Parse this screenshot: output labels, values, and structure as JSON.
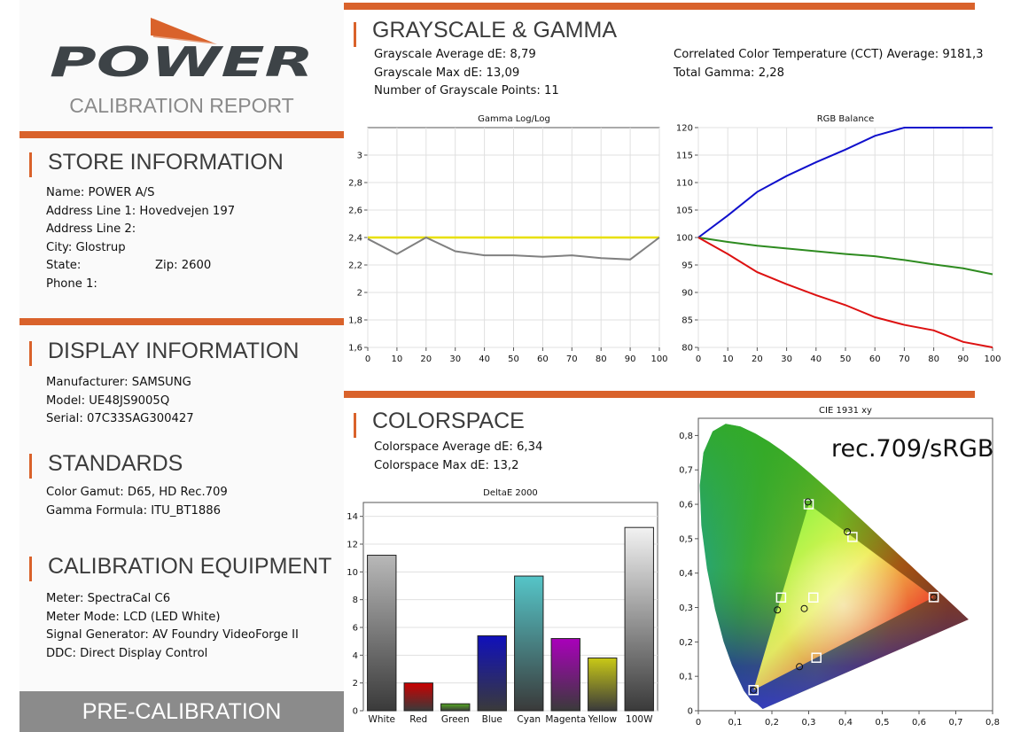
{
  "brand": {
    "logo_text": "POWER",
    "subtitle": "CALIBRATION REPORT",
    "colors": {
      "accent": "#d9622b",
      "logo": "#3d4347",
      "footer": "#8b8b8b"
    }
  },
  "store": {
    "title": "STORE INFORMATION",
    "lines": [
      "Name: POWER A/S",
      "Address Line 1: Hovedvejen 197",
      "Address Line 2:",
      "City: Glostrup"
    ],
    "state_label": "State:",
    "zip_label": "Zip: 2600",
    "phone": "Phone 1:"
  },
  "display": {
    "title": "DISPLAY INFORMATION",
    "lines": [
      "Manufacturer: SAMSUNG",
      "Model: UE48JS9005Q",
      "Serial: 07C33SAG300427"
    ]
  },
  "standards": {
    "title": "STANDARDS",
    "lines": [
      "Color Gamut: D65, HD Rec.709",
      "Gamma Formula: ITU_BT1886"
    ]
  },
  "equipment": {
    "title": "CALIBRATION EQUIPMENT",
    "lines": [
      "Meter: SpectraCal C6",
      "Meter Mode: LCD (LED White)",
      "Signal Generator: AV Foundry VideoForge II",
      "DDC: Direct Display Control"
    ]
  },
  "footer": {
    "label": "PRE-CALIBRATION"
  },
  "grayscale": {
    "title": "GRAYSCALE & GAMMA",
    "left_lines": [
      "Grayscale Average dE: 8,79",
      "Grayscale Max dE: 13,09",
      "Number of Grayscale Points: 11"
    ],
    "right_lines": [
      "Correlated Color Temperature (CCT) Average: 9181,3",
      "Total Gamma: 2,28"
    ]
  },
  "colorspace": {
    "title": "COLORSPACE",
    "lines": [
      "Colorspace Average dE: 6,34",
      "Colorspace Max dE: 13,2"
    ]
  },
  "chart_data": [
    {
      "type": "line",
      "title": "Gamma Log/Log",
      "x": [
        0,
        10,
        20,
        30,
        40,
        50,
        60,
        70,
        80,
        90,
        100
      ],
      "xlim": [
        0,
        100
      ],
      "ylim": [
        1.6,
        3.2
      ],
      "x_ticks": [
        "0",
        "10",
        "20",
        "30",
        "40",
        "50",
        "60",
        "70",
        "80",
        "90",
        "100"
      ],
      "y_ticks": [
        {
          "v": 1.6,
          "label": "1,6"
        },
        {
          "v": 1.8,
          "label": "1,8"
        },
        {
          "v": 2.0,
          "label": "2"
        },
        {
          "v": 2.2,
          "label": "2,2"
        },
        {
          "v": 2.4,
          "label": "2,4"
        },
        {
          "v": 2.6,
          "label": "2,6"
        },
        {
          "v": 2.8,
          "label": "2,8"
        },
        {
          "v": 3.0,
          "label": "3"
        }
      ],
      "grid": true,
      "series": [
        {
          "color": "#e8e000",
          "values": [
            2.4,
            2.4,
            2.4,
            2.4,
            2.4,
            2.4,
            2.4,
            2.4,
            2.4,
            2.4,
            2.4
          ]
        },
        {
          "color": "#808080",
          "values": [
            2.39,
            2.28,
            2.4,
            2.3,
            2.27,
            2.27,
            2.26,
            2.27,
            2.25,
            2.24,
            2.4
          ]
        }
      ]
    },
    {
      "type": "line",
      "title": "RGB Balance",
      "x": [
        0,
        10,
        20,
        30,
        40,
        50,
        60,
        70,
        80,
        90,
        100
      ],
      "xlim": [
        0,
        100
      ],
      "ylim": [
        80,
        120
      ],
      "x_ticks": [
        "0",
        "10",
        "20",
        "30",
        "40",
        "50",
        "60",
        "70",
        "80",
        "90",
        "100"
      ],
      "y_ticks": [
        {
          "v": 80,
          "label": "80"
        },
        {
          "v": 85,
          "label": "85"
        },
        {
          "v": 90,
          "label": "90"
        },
        {
          "v": 95,
          "label": "95"
        },
        {
          "v": 100,
          "label": "100"
        },
        {
          "v": 105,
          "label": "105"
        },
        {
          "v": 110,
          "label": "110"
        },
        {
          "v": 115,
          "label": "115"
        },
        {
          "v": 120,
          "label": "120"
        }
      ],
      "grid": true,
      "series": [
        {
          "color": "#1010cc",
          "values": [
            100,
            104,
            108.3,
            111.2,
            113.7,
            116,
            118.5,
            120,
            120,
            120,
            120
          ]
        },
        {
          "color": "#2e8b20",
          "values": [
            100,
            99.2,
            98.5,
            98,
            97.5,
            97,
            96.6,
            95.9,
            95.1,
            94.4,
            93.3
          ]
        },
        {
          "color": "#dd1111",
          "values": [
            100,
            97,
            93.7,
            91.5,
            89.5,
            87.7,
            85.5,
            84.1,
            83.1,
            81,
            80
          ]
        }
      ]
    },
    {
      "type": "bar",
      "title": "DeltaE 2000",
      "categories": [
        "White",
        "Red",
        "Green",
        "Blue",
        "Cyan",
        "Magenta",
        "Yellow",
        "100W"
      ],
      "values": [
        11.2,
        2,
        0.5,
        5.4,
        9.7,
        5.2,
        3.8,
        13.2
      ],
      "colors": [
        "#b8b8b8",
        "#cc0000",
        "#55aa22",
        "#1010bb",
        "#55c5c8",
        "#aa00bb",
        "#c9c916",
        "#f2f2f2"
      ],
      "ylim": [
        0,
        15
      ],
      "y_ticks": [
        "0",
        "2",
        "4",
        "6",
        "8",
        "10",
        "12",
        "14"
      ],
      "grid": true
    },
    {
      "type": "scatter",
      "title": "CIE 1931 xy",
      "annotation": "rec.709/sRGB",
      "xlim": [
        0,
        0.8
      ],
      "ylim": [
        0,
        0.85
      ],
      "x_ticks": [
        "0",
        "0,1",
        "0,2",
        "0,3",
        "0,4",
        "0,5",
        "0,6",
        "0,7",
        "0,8"
      ],
      "y_ticks": [
        "0",
        "0,1",
        "0,2",
        "0,3",
        "0,4",
        "0,5",
        "0,6",
        "0,7",
        "0,8"
      ],
      "target_gamut": [
        [
          0.64,
          0.33
        ],
        [
          0.3,
          0.6
        ],
        [
          0.15,
          0.06
        ]
      ],
      "targets": [
        [
          0.64,
          0.33
        ],
        [
          0.3,
          0.6
        ],
        [
          0.15,
          0.06
        ],
        [
          0.225,
          0.329
        ],
        [
          0.321,
          0.154
        ],
        [
          0.419,
          0.505
        ],
        [
          0.3127,
          0.329
        ]
      ],
      "measured": [
        [
          0.64,
          0.33
        ],
        [
          0.298,
          0.607
        ],
        [
          0.15,
          0.06
        ],
        [
          0.215,
          0.293
        ],
        [
          0.275,
          0.128
        ],
        [
          0.405,
          0.52
        ],
        [
          0.288,
          0.297
        ]
      ]
    }
  ]
}
